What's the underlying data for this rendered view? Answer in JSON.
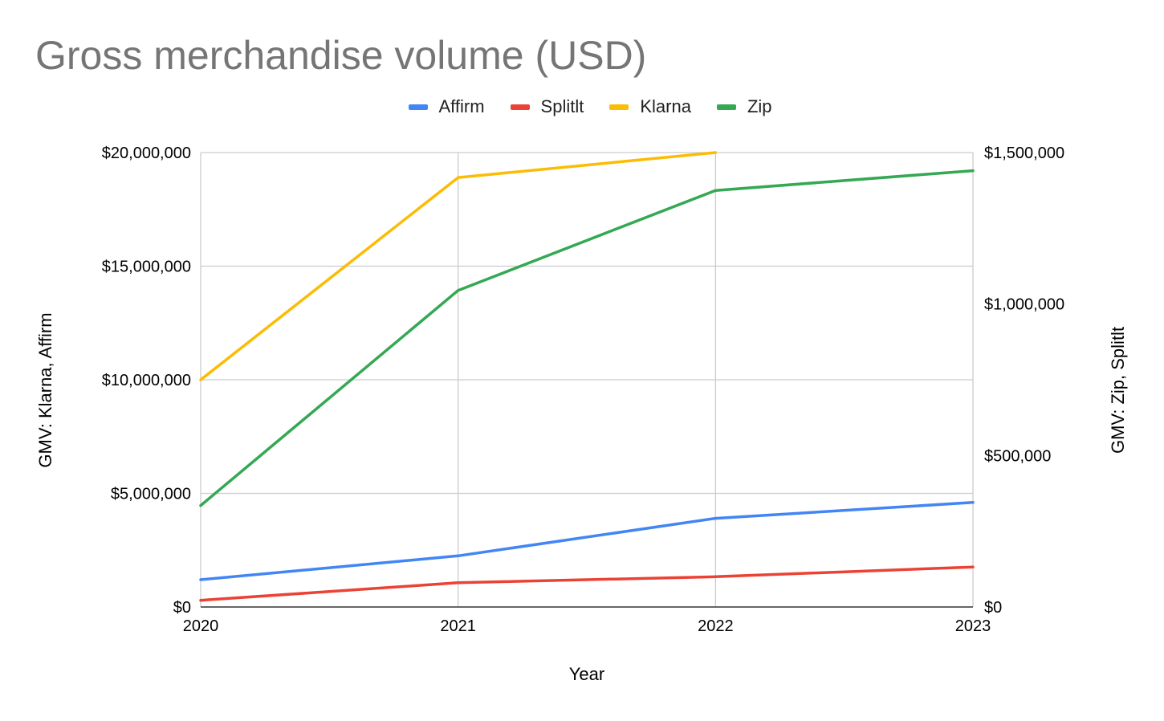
{
  "chart_data": {
    "type": "line",
    "title": "Gross merchandise volume (USD)",
    "xlabel": "Year",
    "ylabel_left": "GMV: Klarna, Affirm",
    "ylabel_right": "GMV: Zip, Splitlt",
    "categories": [
      "2020",
      "2021",
      "2022",
      "2023"
    ],
    "ylim_left": [
      0,
      20000000
    ],
    "ylim_right": [
      0,
      1500000
    ],
    "left_ticks": [
      "$0",
      "$5,000,000",
      "$10,000,000",
      "$15,000,000",
      "$20,000,000"
    ],
    "right_ticks": [
      "$0",
      "$500,000",
      "$1,000,000",
      "$1,500,000"
    ],
    "grid": true,
    "legend_position": "top",
    "series": [
      {
        "name": "Affirm",
        "axis": "left",
        "color": "#4285F4",
        "values": [
          1200000,
          2250000,
          3900000,
          4600000
        ]
      },
      {
        "name": "Splitlt",
        "axis": "right",
        "color": "#EA4335",
        "values": [
          22000,
          80000,
          100000,
          132000
        ]
      },
      {
        "name": "Klarna",
        "axis": "left",
        "color": "#FBBC04",
        "values": [
          10000000,
          18900000,
          20000000,
          null
        ]
      },
      {
        "name": "Zip",
        "axis": "right",
        "color": "#34A853",
        "values": [
          335000,
          1045000,
          1375000,
          1440000
        ]
      }
    ]
  }
}
